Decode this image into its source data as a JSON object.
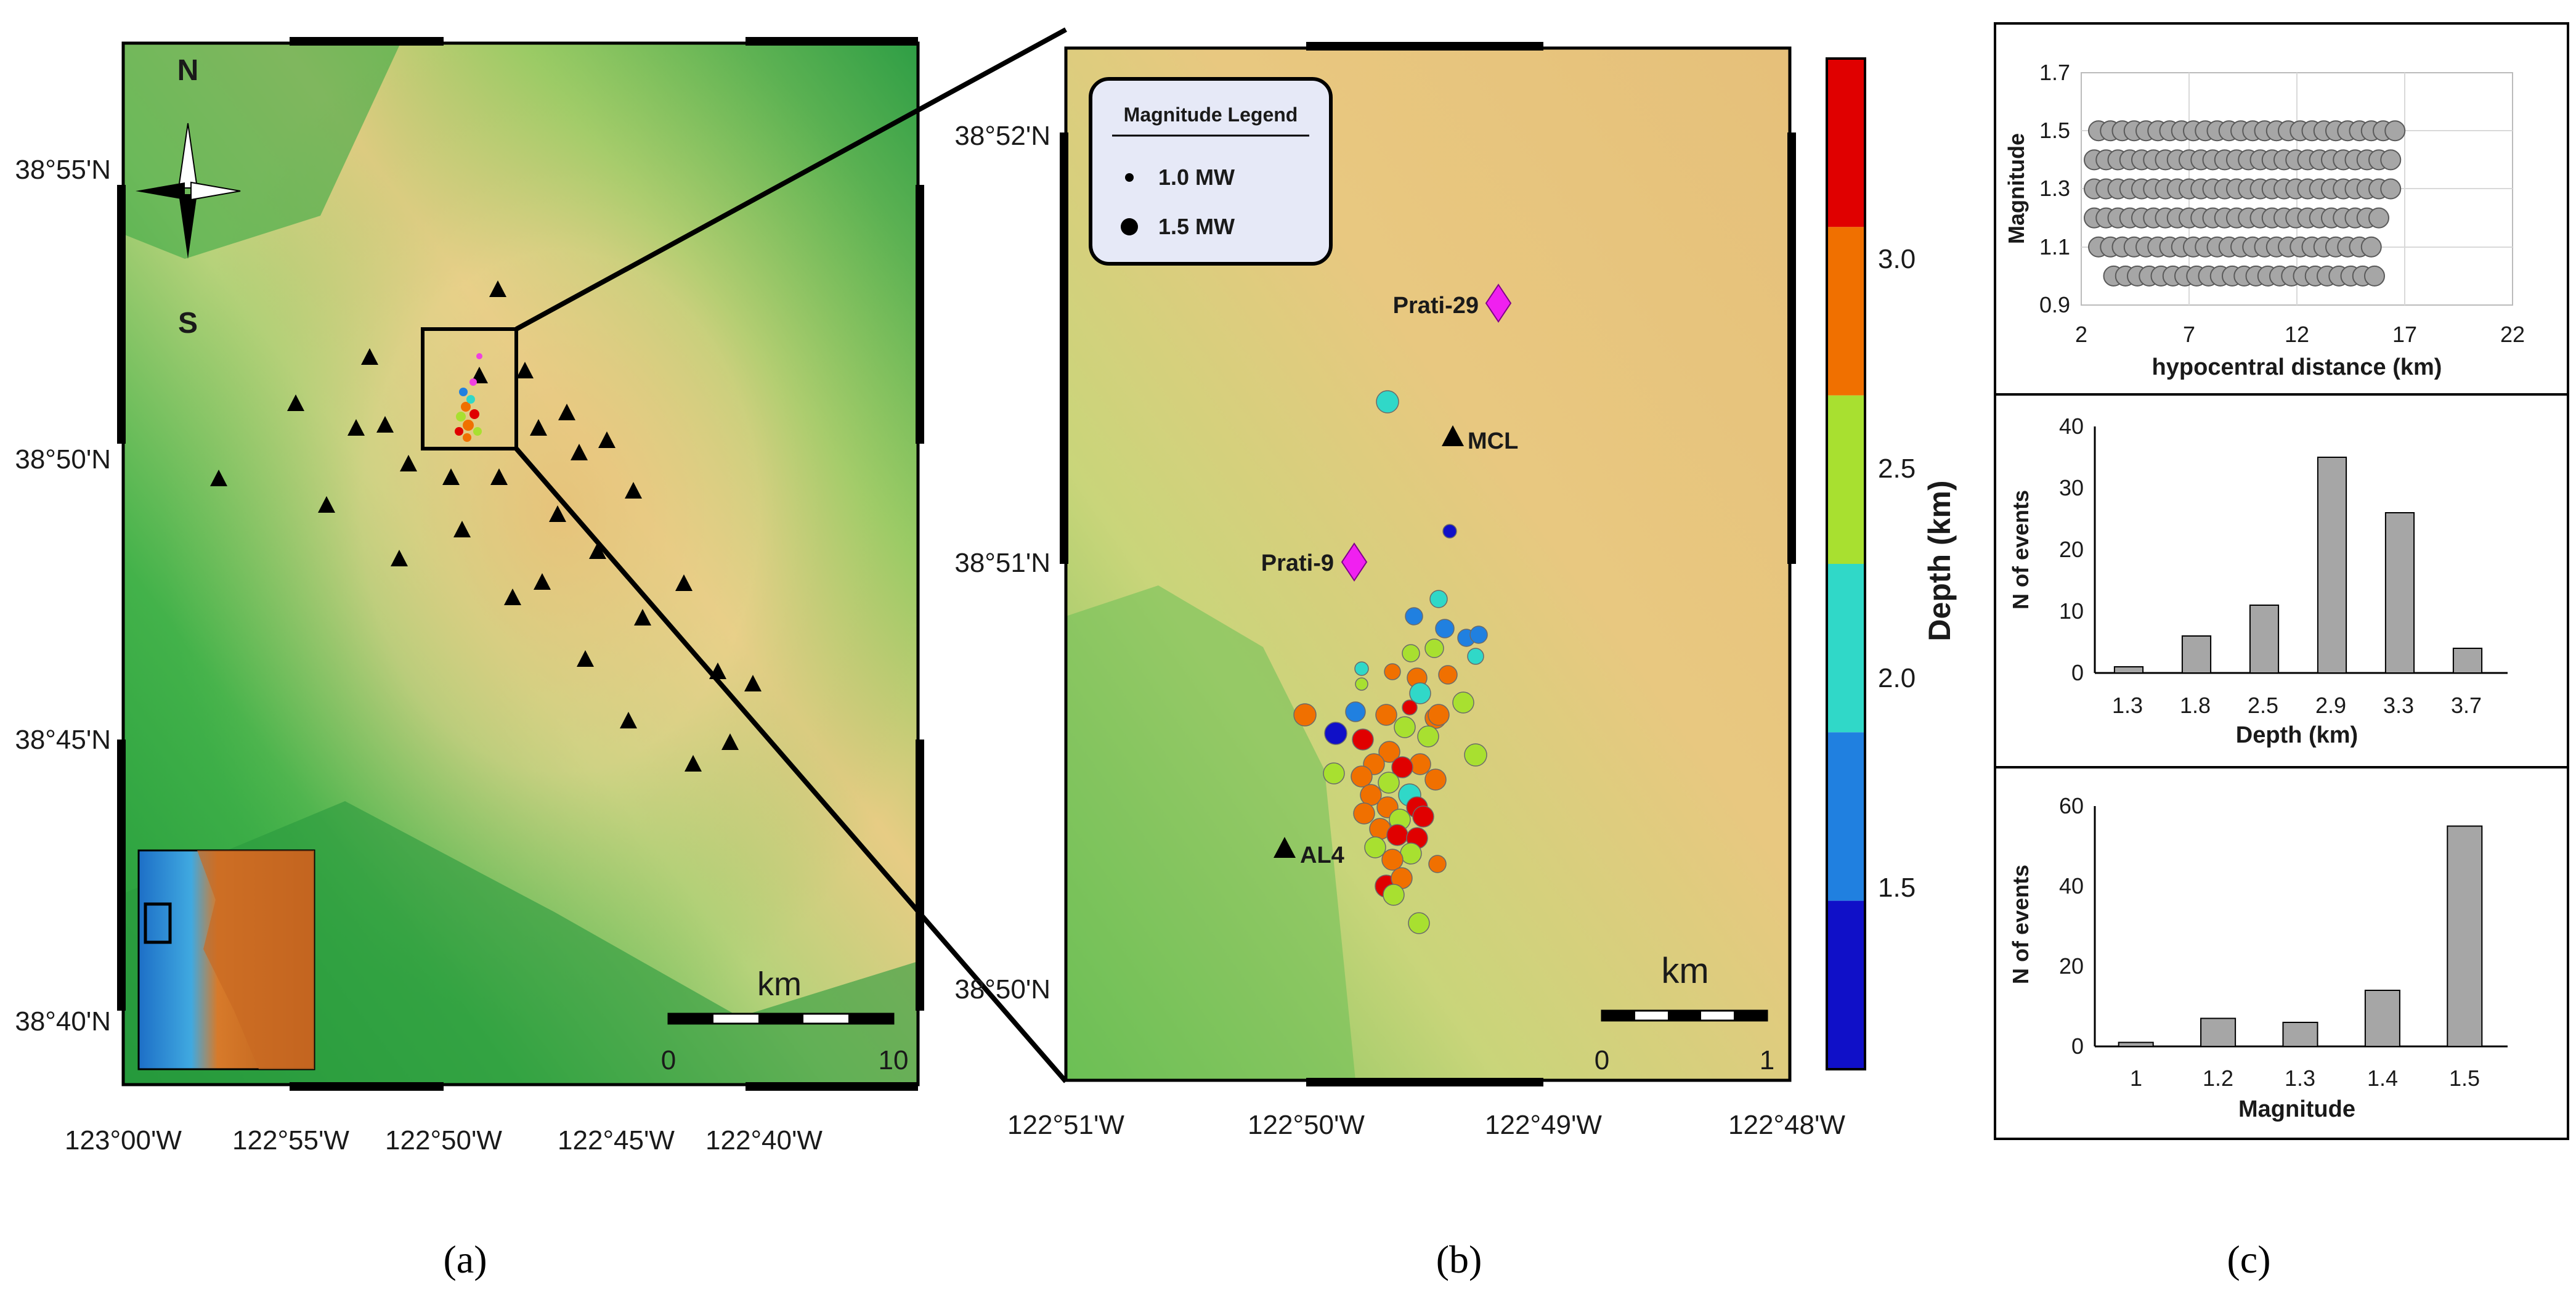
{
  "panel_a": {
    "lat_labels": [
      "38°55'N",
      "38°50'N",
      "38°45'N",
      "38°40'N"
    ],
    "lon_labels": [
      "123°00'W",
      "122°55'W",
      "122°50'W",
      "122°45'W",
      "122°40'W"
    ],
    "compass": {
      "north": "N",
      "south": "S"
    },
    "scalebar": {
      "unit": "km",
      "min": "0",
      "max": "10"
    },
    "caption": "(a)"
  },
  "panel_b": {
    "lat_labels": [
      "38°52'N",
      "38°51'N",
      "38°50'N"
    ],
    "lon_labels": [
      "122°51'W",
      "122°50'W",
      "122°49'W",
      "122°48'W"
    ],
    "legend": {
      "title": "Magnitude Legend",
      "item1": "1.0 MW",
      "item2": "1.5 MW"
    },
    "wells": [
      "Prati-29",
      "Prati-9"
    ],
    "stations": [
      "MCL",
      "AL4"
    ],
    "scalebar": {
      "unit": "km",
      "min": "0",
      "max": "1"
    },
    "colorbar": {
      "label": "Depth (km)",
      "ticks": [
        "3.0",
        "2.5",
        "2.0",
        "1.5"
      ],
      "colors": [
        "#e00000",
        "#f07000",
        "#a8e030",
        "#30d8c8",
        "#2080e0",
        "#1010c8"
      ]
    },
    "caption": "(b)"
  },
  "panel_c": {
    "caption": "(c)",
    "scatter": {
      "ylabel": "Magnitude",
      "xlabel": "hypocentral distance (km)",
      "yticks": [
        "1.7",
        "1.5",
        "1.3",
        "1.1",
        "0.9"
      ],
      "xticks": [
        "2",
        "7",
        "12",
        "17",
        "22"
      ]
    },
    "hist_depth": {
      "ylabel": "N of events",
      "xlabel": "Depth (km)",
      "yticks": [
        "40",
        "30",
        "20",
        "10",
        "0"
      ],
      "categories": [
        "1.3",
        "1.8",
        "2.5",
        "2.9",
        "3.3",
        "3.7"
      ]
    },
    "hist_mag": {
      "ylabel": "N of events",
      "xlabel": "Magnitude",
      "yticks": [
        "60",
        "40",
        "20",
        "0"
      ],
      "categories": [
        "1",
        "1.2",
        "1.3",
        "1.4",
        "1.5"
      ]
    }
  },
  "chart_data": [
    {
      "type": "scatter",
      "xlabel": "hypocentral distance (km)",
      "ylabel": "Magnitude",
      "xlim": [
        2,
        22
      ],
      "ylim": [
        0.9,
        1.7
      ],
      "series": [
        {
          "x_range": [
            2.5,
            17
          ],
          "y_values": [
            1.0,
            1.1,
            1.2,
            1.3,
            1.4,
            1.5
          ]
        }
      ]
    },
    {
      "type": "bar",
      "xlabel": "Depth (km)",
      "ylabel": "N of events",
      "categories": [
        "1.3",
        "1.8",
        "2.5",
        "2.9",
        "3.3",
        "3.7"
      ],
      "values": [
        1,
        6,
        11,
        35,
        26,
        4
      ],
      "ylim": [
        0,
        40
      ]
    },
    {
      "type": "bar",
      "xlabel": "Magnitude",
      "ylabel": "N of events",
      "categories": [
        "1",
        "1.2",
        "1.3",
        "1.4",
        "1.5"
      ],
      "values": [
        1,
        7,
        6,
        14,
        55
      ],
      "ylim": [
        0,
        60
      ]
    }
  ]
}
